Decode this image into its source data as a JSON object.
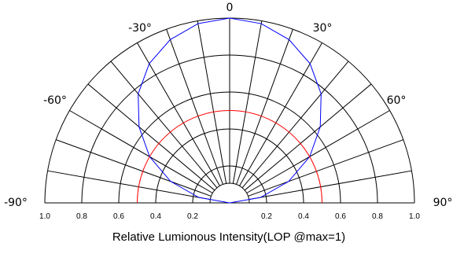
{
  "chart_data": {
    "type": "polar",
    "title": "",
    "xlabel": "Relative Lumionous Intensity(LOP @max=1)",
    "radial_range": [
      0,
      1.0
    ],
    "radial_ticks": [
      0.2,
      0.4,
      0.6,
      0.8,
      1.0
    ],
    "radial_tick_labels_left": [
      "1.0",
      "0.8",
      "0.6",
      "0.4",
      "0.2"
    ],
    "radial_tick_labels_right": [
      "0.2",
      "0.4",
      "0.6",
      "0.8",
      "1.0"
    ],
    "angle_range_deg": [
      -90,
      90
    ],
    "angle_spoke_step_deg": 10,
    "angle_labels": [
      {
        "angle": 0,
        "text": "0"
      },
      {
        "angle": -30,
        "text": "-30°"
      },
      {
        "angle": 30,
        "text": "30°"
      },
      {
        "angle": -60,
        "text": "-60°"
      },
      {
        "angle": 60,
        "text": "60°"
      },
      {
        "angle": -90,
        "text": "-90°"
      },
      {
        "angle": 90,
        "text": "90°"
      }
    ],
    "grid": true,
    "legend": "none",
    "series": [
      {
        "color": "#0000ff",
        "angle_deg": [
          -90,
          -80,
          -70,
          -60,
          -50,
          -40,
          -30,
          -20,
          -10,
          0,
          10,
          20,
          30,
          40,
          50,
          60,
          70,
          80,
          90
        ],
        "values": [
          0.0,
          0.17,
          0.34,
          0.5,
          0.64,
          0.77,
          0.87,
          0.94,
          0.985,
          1.0,
          0.985,
          0.94,
          0.87,
          0.77,
          0.64,
          0.5,
          0.34,
          0.17,
          0.0
        ]
      },
      {
        "color": "#ff0000",
        "angle_deg": [
          -90,
          -70,
          -50,
          -30,
          -10,
          0,
          10,
          30,
          50,
          70,
          90
        ],
        "values": [
          0.5,
          0.5,
          0.5,
          0.5,
          0.5,
          0.5,
          0.5,
          0.5,
          0.5,
          0.5,
          0.5
        ]
      }
    ]
  }
}
